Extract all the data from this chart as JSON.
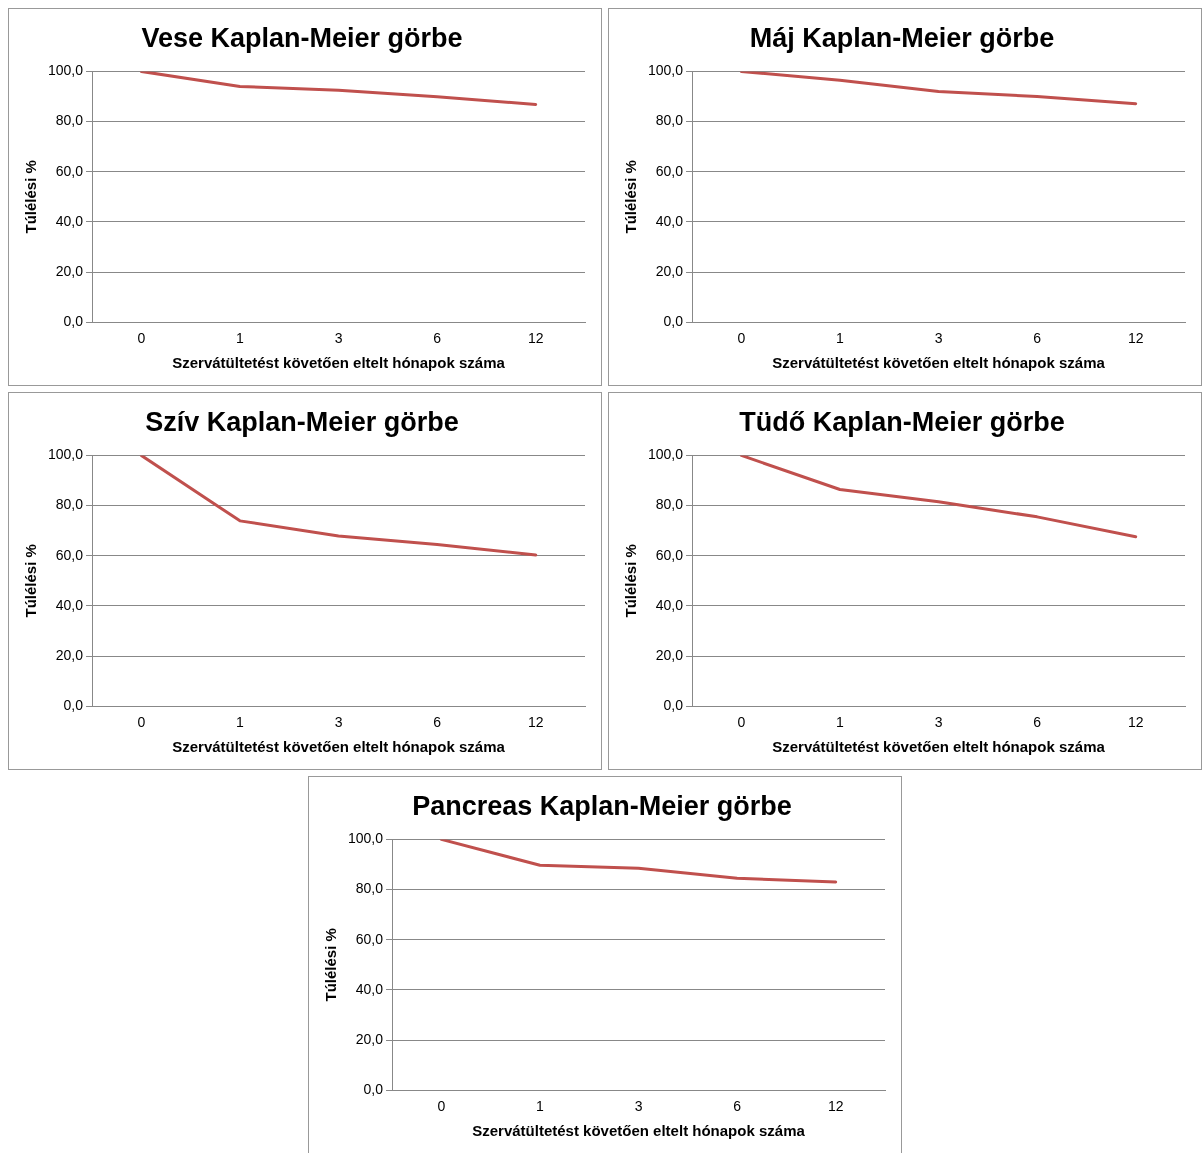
{
  "chart_data": [
    {
      "type": "line",
      "title": "Vese Kaplan-Meier görbe",
      "xlabel": "Szervátültetést követően eltelt hónapok száma",
      "ylabel": "Túlélési %",
      "categories": [
        "0",
        "1",
        "3",
        "6",
        "12"
      ],
      "series": [
        {
          "color": "#c0504d",
          "values": [
            100,
            94,
            92.5,
            89.9,
            86.8
          ]
        }
      ],
      "ylim": [
        0,
        100
      ],
      "yticks": [
        {
          "value": 0,
          "label": "0,0"
        },
        {
          "value": 20,
          "label": "20,0"
        },
        {
          "value": 40,
          "label": "40,0"
        },
        {
          "value": 60,
          "label": "60,0"
        },
        {
          "value": 80,
          "label": "80,0"
        },
        {
          "value": 100,
          "label": "100,0"
        }
      ],
      "grid": "y",
      "legend": false,
      "marker": "none",
      "line_style": "solid"
    },
    {
      "type": "line",
      "title": "Máj Kaplan-Meier görbe",
      "xlabel": "Szervátültetést követően eltelt hónapok száma",
      "ylabel": "Túlélési %",
      "categories": [
        "0",
        "1",
        "3",
        "6",
        "12"
      ],
      "series": [
        {
          "color": "#c0504d",
          "values": [
            100,
            96.5,
            92,
            90,
            87.1
          ]
        }
      ],
      "ylim": [
        0,
        100
      ],
      "yticks": [
        {
          "value": 0,
          "label": "0,0"
        },
        {
          "value": 20,
          "label": "20,0"
        },
        {
          "value": 40,
          "label": "40,0"
        },
        {
          "value": 60,
          "label": "60,0"
        },
        {
          "value": 80,
          "label": "80,0"
        },
        {
          "value": 100,
          "label": "100,0"
        }
      ],
      "grid": "y",
      "legend": false,
      "marker": "none",
      "line_style": "solid"
    },
    {
      "type": "line",
      "title": "Szív Kaplan-Meier görbe",
      "xlabel": "Szervátültetést követően eltelt hónapok száma",
      "ylabel": "Túlélési %",
      "categories": [
        "0",
        "1",
        "3",
        "6",
        "12"
      ],
      "series": [
        {
          "color": "#c0504d",
          "values": [
            100,
            73.9,
            67.9,
            64.5,
            60.3
          ]
        }
      ],
      "ylim": [
        0,
        100
      ],
      "yticks": [
        {
          "value": 0,
          "label": "0,0"
        },
        {
          "value": 20,
          "label": "20,0"
        },
        {
          "value": 40,
          "label": "40,0"
        },
        {
          "value": 60,
          "label": "60,0"
        },
        {
          "value": 80,
          "label": "80,0"
        },
        {
          "value": 100,
          "label": "100,0"
        }
      ],
      "grid": "y",
      "legend": false,
      "marker": "none",
      "line_style": "solid"
    },
    {
      "type": "line",
      "title": "Tüdő Kaplan-Meier görbe",
      "xlabel": "Szervátültetést követően eltelt hónapok száma",
      "ylabel": "Túlélési %",
      "categories": [
        "0",
        "1",
        "3",
        "6",
        "12"
      ],
      "series": [
        {
          "color": "#c0504d",
          "values": [
            100,
            86.4,
            81.5,
            75.5,
            67.6
          ]
        }
      ],
      "ylim": [
        0,
        100
      ],
      "yticks": [
        {
          "value": 0,
          "label": "0,0"
        },
        {
          "value": 20,
          "label": "20,0"
        },
        {
          "value": 40,
          "label": "40,0"
        },
        {
          "value": 60,
          "label": "60,0"
        },
        {
          "value": 80,
          "label": "80,0"
        },
        {
          "value": 100,
          "label": "100,0"
        }
      ],
      "grid": "y",
      "legend": false,
      "marker": "none",
      "line_style": "solid"
    },
    {
      "type": "line",
      "title": "Pancreas Kaplan-Meier görbe",
      "xlabel": "Szervátültetést követően eltelt hónapok száma",
      "ylabel": "Túlélési %",
      "categories": [
        "0",
        "1",
        "3",
        "6",
        "12"
      ],
      "series": [
        {
          "color": "#c0504d",
          "values": [
            100,
            89.7,
            88.5,
            84.5,
            83
          ]
        }
      ],
      "ylim": [
        0,
        100
      ],
      "yticks": [
        {
          "value": 0,
          "label": "0,0"
        },
        {
          "value": 20,
          "label": "20,0"
        },
        {
          "value": 40,
          "label": "40,0"
        },
        {
          "value": 60,
          "label": "60,0"
        },
        {
          "value": 80,
          "label": "80,0"
        },
        {
          "value": 100,
          "label": "100,0"
        }
      ],
      "grid": "y",
      "legend": false,
      "marker": "none",
      "line_style": "solid"
    }
  ]
}
